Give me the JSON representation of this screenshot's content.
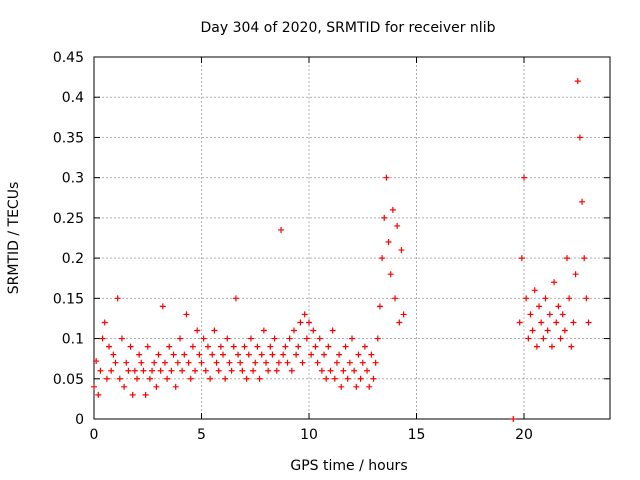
{
  "chart_data": {
    "type": "scatter",
    "title": "Day 304 of 2020, SRMTID for receiver nlib",
    "xlabel": "GPS time / hours",
    "ylabel": "SRMTID / TECUs",
    "xlim": [
      0,
      24
    ],
    "ylim": [
      0,
      0.45
    ],
    "x_ticks": [
      0,
      5,
      10,
      15,
      20
    ],
    "x_tick_labels": [
      "0",
      "5",
      "10",
      "15",
      "20"
    ],
    "y_ticks": [
      0,
      0.05,
      0.1,
      0.15,
      0.2,
      0.25,
      0.3,
      0.35,
      0.4,
      0.45
    ],
    "y_tick_labels": [
      "0",
      "0.05",
      "0.1",
      "0.15",
      "0.2",
      "0.25",
      "0.3",
      "0.35",
      "0.4",
      "0.45"
    ],
    "grid": true,
    "marker": "+",
    "series": [
      {
        "name": "SRMTID",
        "color": "#ff0000",
        "points": [
          [
            0.0,
            0.04
          ],
          [
            0.1,
            0.072
          ],
          [
            0.2,
            0.03
          ],
          [
            0.3,
            0.06
          ],
          [
            0.4,
            0.1
          ],
          [
            0.5,
            0.12
          ],
          [
            0.6,
            0.05
          ],
          [
            0.7,
            0.09
          ],
          [
            0.8,
            0.06
          ],
          [
            0.9,
            0.08
          ],
          [
            1.0,
            0.07
          ],
          [
            1.1,
            0.15
          ],
          [
            1.2,
            0.05
          ],
          [
            1.3,
            0.1
          ],
          [
            1.4,
            0.04
          ],
          [
            1.5,
            0.07
          ],
          [
            1.6,
            0.06
          ],
          [
            1.7,
            0.09
          ],
          [
            1.8,
            0.03
          ],
          [
            1.9,
            0.06
          ],
          [
            2.0,
            0.05
          ],
          [
            2.1,
            0.08
          ],
          [
            2.2,
            0.07
          ],
          [
            2.3,
            0.06
          ],
          [
            2.4,
            0.03
          ],
          [
            2.5,
            0.09
          ],
          [
            2.6,
            0.05
          ],
          [
            2.7,
            0.06
          ],
          [
            2.8,
            0.07
          ],
          [
            2.9,
            0.04
          ],
          [
            3.0,
            0.08
          ],
          [
            3.1,
            0.06
          ],
          [
            3.2,
            0.14
          ],
          [
            3.3,
            0.07
          ],
          [
            3.4,
            0.05
          ],
          [
            3.5,
            0.09
          ],
          [
            3.6,
            0.06
          ],
          [
            3.7,
            0.08
          ],
          [
            3.8,
            0.04
          ],
          [
            3.9,
            0.07
          ],
          [
            4.0,
            0.1
          ],
          [
            4.1,
            0.06
          ],
          [
            4.2,
            0.08
          ],
          [
            4.3,
            0.13
          ],
          [
            4.4,
            0.07
          ],
          [
            4.5,
            0.05
          ],
          [
            4.6,
            0.09
          ],
          [
            4.7,
            0.06
          ],
          [
            4.8,
            0.11
          ],
          [
            4.9,
            0.08
          ],
          [
            5.0,
            0.07
          ],
          [
            5.1,
            0.1
          ],
          [
            5.2,
            0.06
          ],
          [
            5.3,
            0.09
          ],
          [
            5.4,
            0.05
          ],
          [
            5.5,
            0.08
          ],
          [
            5.6,
            0.11
          ],
          [
            5.7,
            0.07
          ],
          [
            5.8,
            0.06
          ],
          [
            5.9,
            0.09
          ],
          [
            6.0,
            0.08
          ],
          [
            6.1,
            0.05
          ],
          [
            6.2,
            0.1
          ],
          [
            6.3,
            0.07
          ],
          [
            6.4,
            0.06
          ],
          [
            6.5,
            0.09
          ],
          [
            6.6,
            0.15
          ],
          [
            6.7,
            0.08
          ],
          [
            6.8,
            0.07
          ],
          [
            6.9,
            0.06
          ],
          [
            7.0,
            0.09
          ],
          [
            7.1,
            0.05
          ],
          [
            7.2,
            0.08
          ],
          [
            7.3,
            0.1
          ],
          [
            7.4,
            0.06
          ],
          [
            7.5,
            0.07
          ],
          [
            7.6,
            0.09
          ],
          [
            7.7,
            0.05
          ],
          [
            7.8,
            0.08
          ],
          [
            7.9,
            0.11
          ],
          [
            8.0,
            0.07
          ],
          [
            8.1,
            0.06
          ],
          [
            8.2,
            0.09
          ],
          [
            8.3,
            0.08
          ],
          [
            8.4,
            0.1
          ],
          [
            8.5,
            0.06
          ],
          [
            8.6,
            0.07
          ],
          [
            8.7,
            0.235
          ],
          [
            8.8,
            0.08
          ],
          [
            8.9,
            0.09
          ],
          [
            9.0,
            0.07
          ],
          [
            9.1,
            0.1
          ],
          [
            9.2,
            0.06
          ],
          [
            9.3,
            0.11
          ],
          [
            9.4,
            0.08
          ],
          [
            9.5,
            0.09
          ],
          [
            9.6,
            0.12
          ],
          [
            9.7,
            0.07
          ],
          [
            9.8,
            0.13
          ],
          [
            9.9,
            0.1
          ],
          [
            10.0,
            0.12
          ],
          [
            10.1,
            0.08
          ],
          [
            10.2,
            0.11
          ],
          [
            10.3,
            0.09
          ],
          [
            10.4,
            0.07
          ],
          [
            10.5,
            0.1
          ],
          [
            10.6,
            0.06
          ],
          [
            10.7,
            0.08
          ],
          [
            10.8,
            0.05
          ],
          [
            10.9,
            0.09
          ],
          [
            11.0,
            0.06
          ],
          [
            11.1,
            0.11
          ],
          [
            11.2,
            0.05
          ],
          [
            11.3,
            0.07
          ],
          [
            11.4,
            0.08
          ],
          [
            11.5,
            0.04
          ],
          [
            11.6,
            0.06
          ],
          [
            11.7,
            0.09
          ],
          [
            11.8,
            0.05
          ],
          [
            11.9,
            0.07
          ],
          [
            12.0,
            0.1
          ],
          [
            12.1,
            0.06
          ],
          [
            12.2,
            0.04
          ],
          [
            12.3,
            0.08
          ],
          [
            12.4,
            0.05
          ],
          [
            12.5,
            0.07
          ],
          [
            12.6,
            0.09
          ],
          [
            12.7,
            0.06
          ],
          [
            12.8,
            0.04
          ],
          [
            12.9,
            0.08
          ],
          [
            13.0,
            0.05
          ],
          [
            13.1,
            0.07
          ],
          [
            13.2,
            0.1
          ],
          [
            13.3,
            0.14
          ],
          [
            13.4,
            0.2
          ],
          [
            13.5,
            0.25
          ],
          [
            13.6,
            0.3
          ],
          [
            13.7,
            0.22
          ],
          [
            13.8,
            0.18
          ],
          [
            13.9,
            0.26
          ],
          [
            14.0,
            0.15
          ],
          [
            14.1,
            0.24
          ],
          [
            14.2,
            0.12
          ],
          [
            14.3,
            0.21
          ],
          [
            14.4,
            0.13
          ],
          [
            19.5,
            0.0
          ],
          [
            19.8,
            0.12
          ],
          [
            19.9,
            0.2
          ],
          [
            20.0,
            0.3
          ],
          [
            20.1,
            0.15
          ],
          [
            20.2,
            0.1
          ],
          [
            20.3,
            0.13
          ],
          [
            20.4,
            0.11
          ],
          [
            20.5,
            0.16
          ],
          [
            20.6,
            0.09
          ],
          [
            20.7,
            0.14
          ],
          [
            20.8,
            0.12
          ],
          [
            20.9,
            0.1
          ],
          [
            21.0,
            0.15
          ],
          [
            21.1,
            0.11
          ],
          [
            21.2,
            0.13
          ],
          [
            21.3,
            0.09
          ],
          [
            21.4,
            0.17
          ],
          [
            21.5,
            0.12
          ],
          [
            21.6,
            0.14
          ],
          [
            21.7,
            0.1
          ],
          [
            21.8,
            0.13
          ],
          [
            21.9,
            0.11
          ],
          [
            22.0,
            0.2
          ],
          [
            22.1,
            0.15
          ],
          [
            22.2,
            0.09
          ],
          [
            22.3,
            0.12
          ],
          [
            22.4,
            0.18
          ],
          [
            22.5,
            0.42
          ],
          [
            22.6,
            0.35
          ],
          [
            22.7,
            0.27
          ],
          [
            22.8,
            0.2
          ],
          [
            22.9,
            0.15
          ],
          [
            23.0,
            0.12
          ]
        ]
      }
    ]
  }
}
